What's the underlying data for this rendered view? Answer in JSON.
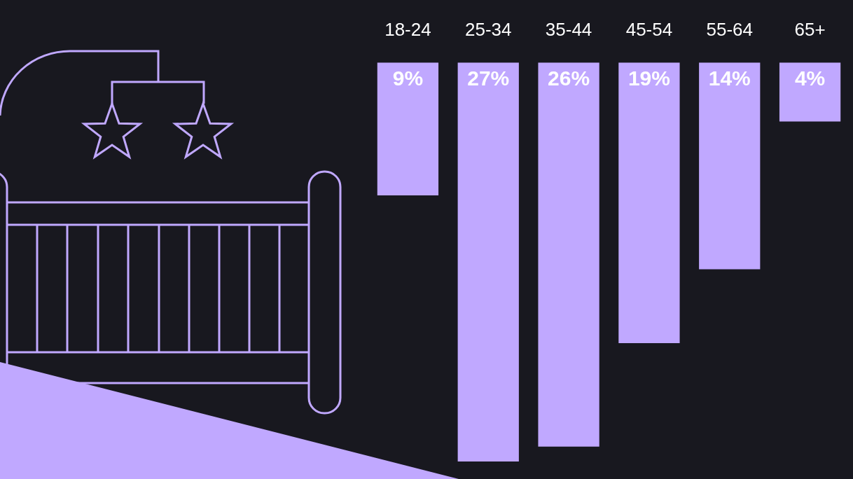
{
  "chart_data": {
    "type": "bar",
    "categories": [
      "18-24",
      "25-34",
      "35-44",
      "45-54",
      "55-64",
      "65+"
    ],
    "values": [
      9,
      27,
      26,
      19,
      14,
      4
    ],
    "value_labels": [
      "9%",
      "27%",
      "26%",
      "19%",
      "14%",
      "4%"
    ],
    "color": "#c0a8ff",
    "ylim": [
      0,
      28
    ],
    "data_labels": true,
    "tick_labels": "x",
    "grid": false
  }
}
